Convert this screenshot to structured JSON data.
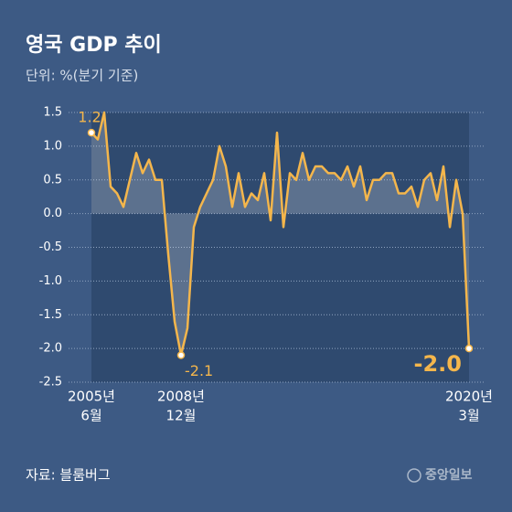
{
  "chart_data": {
    "type": "line",
    "title": "영국 GDP 추이",
    "subtitle": "단위: %(분기 기준)",
    "source": "자료: 블룸버그",
    "logo": "중앙일보",
    "categories": [
      [
        "2005년",
        "6월"
      ],
      null,
      null,
      null,
      null,
      null,
      null,
      null,
      null,
      null,
      null,
      null,
      null,
      null,
      [
        "2008년",
        "12월"
      ],
      null,
      null,
      null,
      null,
      null,
      null,
      null,
      null,
      null,
      null,
      null,
      null,
      null,
      null,
      null,
      null,
      null,
      null,
      null,
      null,
      null,
      null,
      null,
      null,
      null,
      null,
      null,
      null,
      null,
      null,
      null,
      null,
      null,
      null,
      null,
      null,
      null,
      null,
      null,
      null,
      null,
      null,
      null,
      null,
      [
        "2020년",
        "3월"
      ]
    ],
    "series": [
      {
        "color": "#f4b64c",
        "values": [
          1.2,
          1.1,
          1.5,
          0.4,
          0.3,
          0.1,
          0.5,
          0.9,
          0.6,
          0.8,
          0.5,
          0.5,
          -0.6,
          -1.6,
          -2.1,
          -1.7,
          -0.2,
          0.1,
          0.3,
          0.5,
          1.0,
          0.7,
          0.1,
          0.6,
          0.1,
          0.3,
          0.2,
          0.6,
          -0.1,
          1.2,
          -0.2,
          0.6,
          0.5,
          0.9,
          0.5,
          0.7,
          0.7,
          0.6,
          0.6,
          0.5,
          0.7,
          0.4,
          0.7,
          0.2,
          0.5,
          0.5,
          0.6,
          0.6,
          0.3,
          0.3,
          0.4,
          0.1,
          0.5,
          0.6,
          0.2,
          0.7,
          -0.2,
          0.5,
          0.0,
          -2.0
        ],
        "value_labels": [
          "1.2",
          null,
          null,
          null,
          null,
          null,
          null,
          null,
          null,
          null,
          null,
          null,
          null,
          null,
          "-2.1",
          null,
          null,
          null,
          null,
          null,
          null,
          null,
          null,
          null,
          null,
          null,
          null,
          null,
          null,
          null,
          null,
          null,
          null,
          null,
          null,
          null,
          null,
          null,
          null,
          null,
          null,
          null,
          null,
          null,
          null,
          null,
          null,
          null,
          null,
          null,
          null,
          null,
          null,
          null,
          null,
          null,
          null,
          null,
          null,
          "-2.0"
        ]
      }
    ],
    "ylim": [
      -2.5,
      1.5
    ],
    "yticks": [
      {
        "value": 1.5,
        "label": "1.5"
      },
      {
        "value": 1,
        "label": "1.0"
      },
      {
        "value": 0.5,
        "label": "0.5"
      },
      {
        "value": 0,
        "label": "0.0"
      },
      {
        "value": -0.5,
        "label": "-0.5"
      },
      {
        "value": -1,
        "label": "-1.0"
      },
      {
        "value": -1.5,
        "label": "-1.5"
      },
      {
        "value": -2,
        "label": "-2.0"
      },
      {
        "value": -2.5,
        "label": "-2.5"
      }
    ],
    "grid": true
  }
}
